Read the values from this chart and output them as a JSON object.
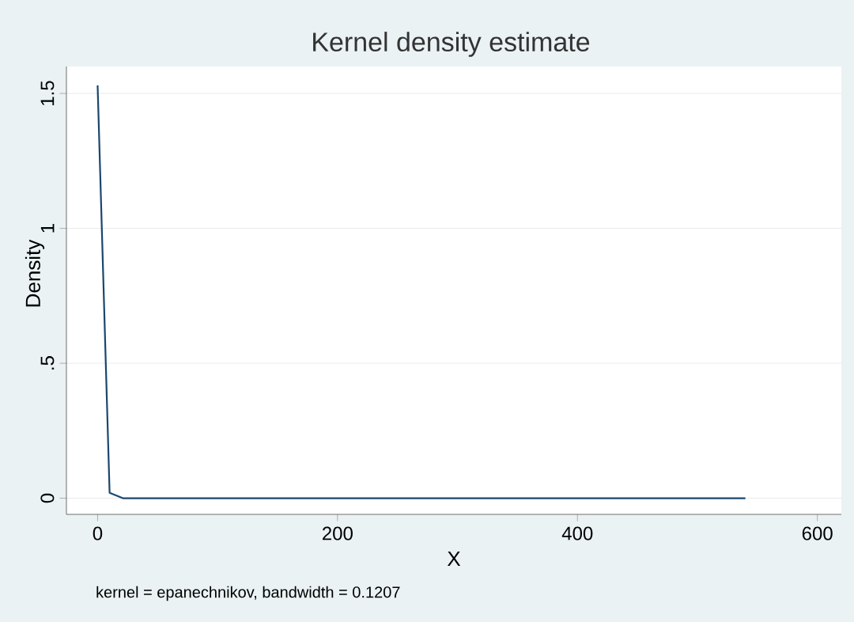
{
  "chart_data": {
    "type": "line",
    "title": "Kernel density estimate",
    "xlabel": "X",
    "ylabel": "Density",
    "annotations": [
      "kernel = epanechnikov, bandwidth = 0.1207"
    ],
    "series": [
      {
        "color": "#1a476f",
        "x": [
          0,
          10,
          21,
          540
        ],
        "values": [
          1.53,
          0.02,
          0,
          0
        ]
      }
    ],
    "xlim": [
      -26,
      620
    ],
    "ylim": [
      -0.06,
      1.6
    ],
    "xticks": [
      0,
      200,
      400,
      600
    ],
    "yticks": [
      0,
      {
        "value": 0.5,
        "label": ".5"
      },
      1,
      1.5
    ],
    "grid": "y",
    "marker": "none",
    "line_style": "solid"
  }
}
